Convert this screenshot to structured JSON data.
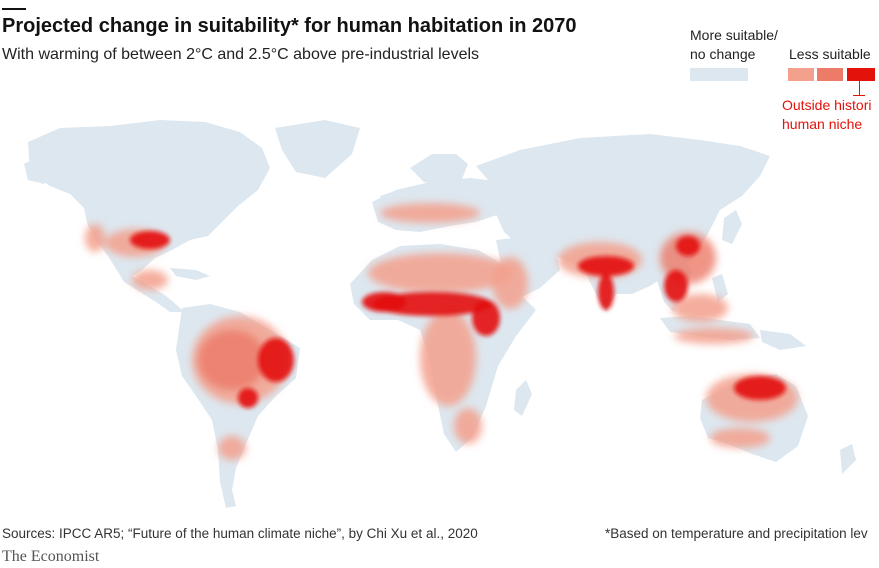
{
  "title": "Projected change in suitability* for human habitation in 2070",
  "subtitle": "With warming of between 2°C and 2.5°C above pre-industrial levels",
  "legend": {
    "more_line1": "More suitable/",
    "more_line2": "no change",
    "less_label": "Less suitable",
    "outside_line1": "Outside histori",
    "outside_line2": "human niche",
    "colors": {
      "more": "#dde7ef",
      "less_1": "#f3a08c",
      "less_2": "#ec7b68",
      "outside": "#e3120b"
    }
  },
  "source": "Sources: IPCC AR5; “Future of the human climate niche”, by Chi Xu et al., 2020",
  "footnote": "*Based on temperature and precipitation lev",
  "brand": "The Economist"
}
